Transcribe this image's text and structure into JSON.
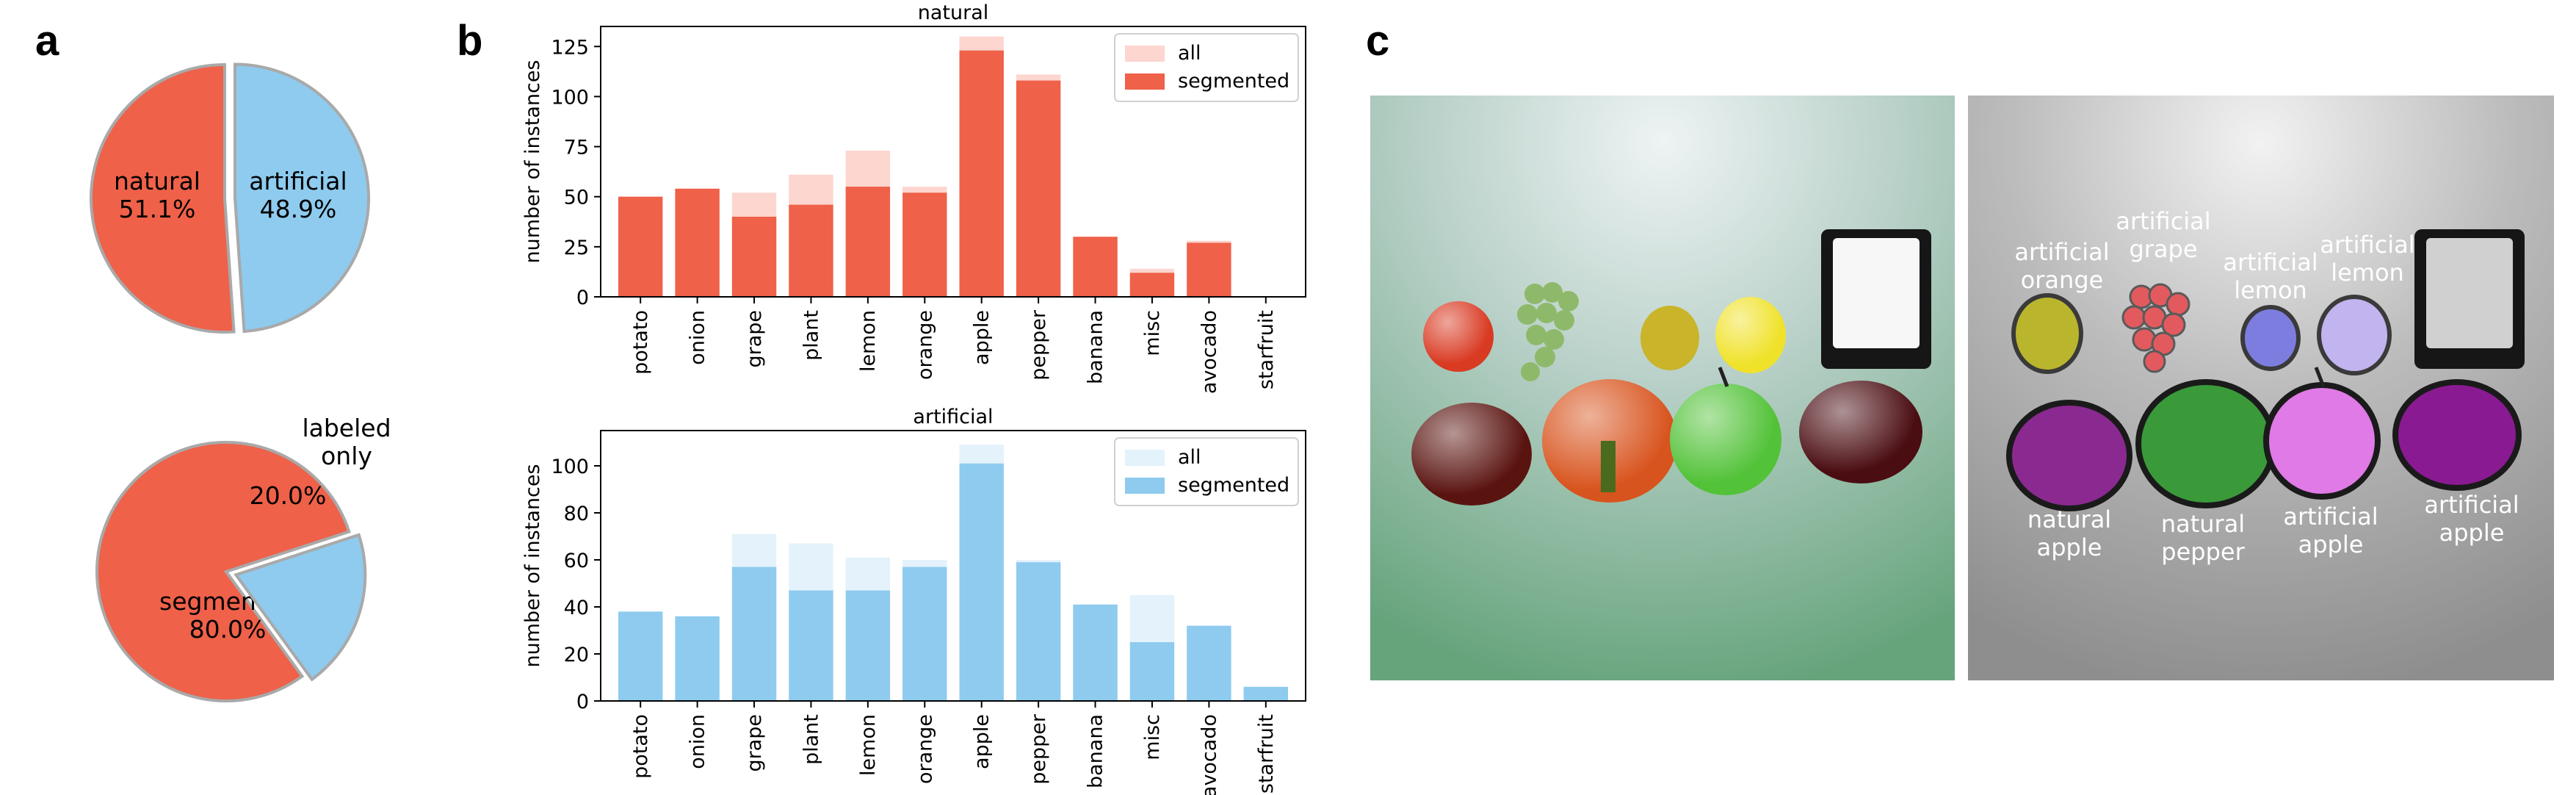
{
  "panels": {
    "a": "a",
    "b": "b",
    "c": "c"
  },
  "colors": {
    "red": "#ef6149",
    "red_light": "#fcd6cf",
    "blue": "#8ecbef",
    "blue_light": "#e3f2fb",
    "pie_edge": "#a9a9a9"
  },
  "chart_data": [
    {
      "type": "pie",
      "panel": "a",
      "slices": [
        {
          "label": "natural",
          "value": 51.1,
          "pct_text": "51.1%",
          "color": "#ef6149"
        },
        {
          "label": "artificial",
          "value": 48.9,
          "pct_text": "48.9%",
          "color": "#8ecbef",
          "exploded": true
        }
      ]
    },
    {
      "type": "pie",
      "panel": "a",
      "slices": [
        {
          "label": "segmented",
          "value": 80.0,
          "pct_text": "80.0%",
          "color": "#ef6149"
        },
        {
          "label": "labeled only",
          "label_lines": [
            "labeled",
            "only"
          ],
          "value": 20.0,
          "pct_text": "20.0%",
          "color": "#8ecbef",
          "exploded": true
        }
      ]
    },
    {
      "type": "bar",
      "panel": "b",
      "title": "natural",
      "ylabel": "number of instances",
      "categories": [
        "potato",
        "onion",
        "grape",
        "plant",
        "lemon",
        "orange",
        "apple",
        "pepper",
        "banana",
        "misc",
        "avocado",
        "starfruit"
      ],
      "ylim": [
        0,
        135
      ],
      "yticks": [
        0,
        25,
        50,
        75,
        100,
        125
      ],
      "legend": "top-right",
      "series": [
        {
          "name": "all",
          "color": "#fcd6cf",
          "values": [
            50,
            54,
            52,
            61,
            73,
            55,
            130,
            111,
            30,
            14,
            28,
            0
          ]
        },
        {
          "name": "segmented",
          "color": "#ef6149",
          "values": [
            50,
            54,
            40,
            46,
            55,
            52,
            123,
            108,
            30,
            12,
            27,
            0
          ]
        }
      ]
    },
    {
      "type": "bar",
      "panel": "b",
      "title": "artificial",
      "ylabel": "number of instances",
      "categories": [
        "potato",
        "onion",
        "grape",
        "plant",
        "lemon",
        "orange",
        "apple",
        "pepper",
        "banana",
        "misc",
        "avocado",
        "starfruit"
      ],
      "ylim": [
        0,
        115
      ],
      "yticks": [
        0,
        20,
        40,
        60,
        80,
        100
      ],
      "legend": "top-right",
      "series": [
        {
          "name": "all",
          "color": "#e3f2fb",
          "values": [
            38,
            36,
            71,
            67,
            61,
            60,
            109,
            60,
            41,
            45,
            32,
            6
          ]
        },
        {
          "name": "segmented",
          "color": "#8ecbef",
          "values": [
            38,
            36,
            57,
            47,
            47,
            57,
            101,
            59,
            41,
            25,
            32,
            6
          ]
        }
      ]
    }
  ],
  "photo_labels": [
    {
      "lines": [
        "artificial",
        "orange"
      ]
    },
    {
      "lines": [
        "artificial",
        "grape"
      ]
    },
    {
      "lines": [
        "artificial",
        "lemon"
      ]
    },
    {
      "lines": [
        "artificial",
        "lemon"
      ]
    },
    {
      "lines": [
        "natural",
        "apple"
      ]
    },
    {
      "lines": [
        "natural",
        "pepper"
      ]
    },
    {
      "lines": [
        "artificial",
        "apple"
      ]
    },
    {
      "lines": [
        "artificial",
        "apple"
      ]
    }
  ]
}
